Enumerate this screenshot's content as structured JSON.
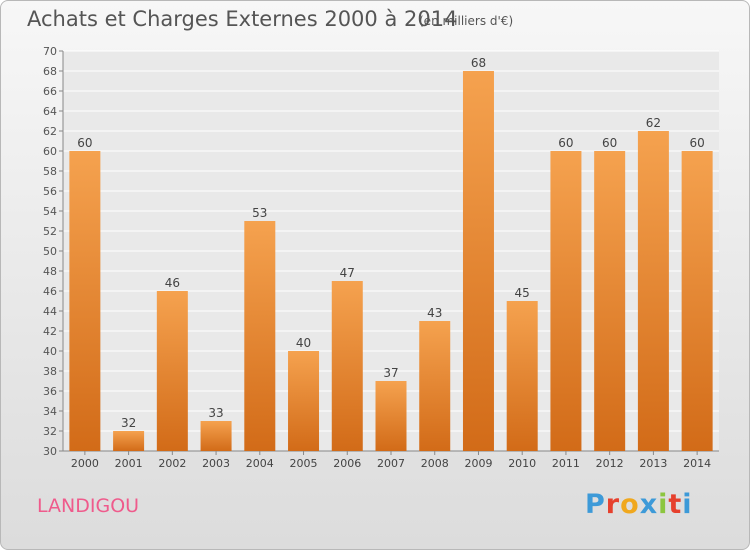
{
  "header": {
    "title": "Achats et Charges Externes 2000 à 2014",
    "subtitle": "(en milliers d'€)"
  },
  "footer": {
    "place": "LANDIGOU",
    "brand_letters": [
      "P",
      "r",
      "o",
      "x",
      "i",
      "t",
      "i"
    ]
  },
  "colors": {
    "bar_top": "#f5a24f",
    "bar_bottom": "#d26b18",
    "place_text": "#ef5b8c",
    "brand_letters": [
      "#3d9ad8",
      "#e6402d",
      "#f0a81e",
      "#3d9ad8",
      "#8cc63f",
      "#e6402d",
      "#3d9ad8"
    ]
  },
  "chart_data": {
    "type": "bar",
    "title": "Achats et Charges Externes 2000 à 2014",
    "subtitle": "(en milliers d'€)",
    "categories": [
      "2000",
      "2001",
      "2002",
      "2003",
      "2004",
      "2005",
      "2006",
      "2007",
      "2008",
      "2009",
      "2010",
      "2011",
      "2012",
      "2013",
      "2014"
    ],
    "values": [
      60,
      32,
      46,
      33,
      53,
      40,
      47,
      37,
      43,
      68,
      45,
      60,
      60,
      62,
      60
    ],
    "ylim": [
      30,
      70
    ],
    "ytick_step": 2,
    "grid": true,
    "data_labels": true
  }
}
